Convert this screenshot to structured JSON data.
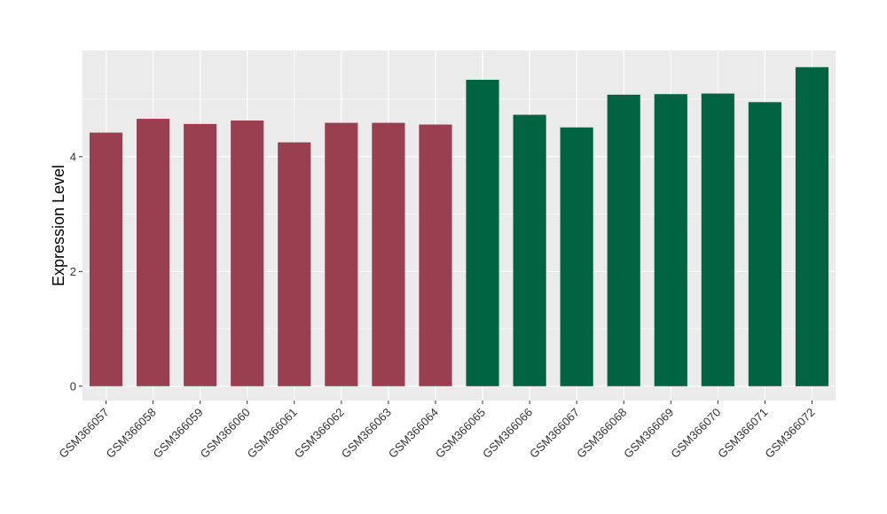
{
  "chart_data": {
    "type": "bar",
    "xlabel": "",
    "ylabel": "Expression Level",
    "ylim": [
      -0.25,
      5.85
    ],
    "yticks": [
      0,
      2,
      4
    ],
    "grid": true,
    "legend": "none",
    "colors": {
      "group1": "#9a3f4f",
      "group2": "#006443",
      "panel": "#ebebeb",
      "grid": "#ffffff"
    },
    "categories": [
      "GSM366057",
      "GSM366058",
      "GSM366059",
      "GSM366060",
      "GSM366061",
      "GSM366062",
      "GSM366063",
      "GSM366064",
      "GSM366065",
      "GSM366066",
      "GSM366067",
      "GSM366068",
      "GSM366069",
      "GSM366070",
      "GSM366071",
      "GSM366072"
    ],
    "values": [
      4.42,
      4.66,
      4.57,
      4.63,
      4.25,
      4.59,
      4.59,
      4.56,
      5.34,
      4.73,
      4.51,
      5.08,
      5.09,
      5.1,
      4.95,
      5.56
    ],
    "groups": [
      1,
      1,
      1,
      1,
      1,
      1,
      1,
      1,
      2,
      2,
      2,
      2,
      2,
      2,
      2,
      2
    ]
  }
}
